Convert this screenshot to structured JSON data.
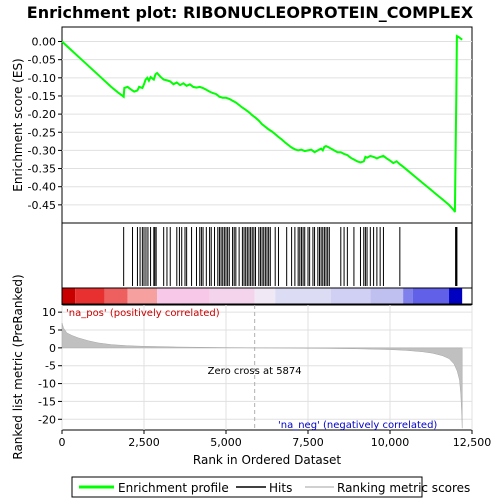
{
  "chart_data": {
    "type": "line",
    "title": "Enrichment plot: RIBONUCLEOPROTEIN_COMPLEX",
    "top_panel": {
      "ylabel": "Enrichment score (ES)",
      "ylim": [
        -0.5,
        0.04
      ],
      "yticks": [
        0.0,
        -0.05,
        -0.1,
        -0.15,
        -0.2,
        -0.25,
        -0.3,
        -0.35,
        -0.4,
        -0.45
      ],
      "ytick_labels": [
        "0.00",
        "-0.05",
        "-0.10",
        "-0.15",
        "-0.20",
        "-0.25",
        "-0.30",
        "-0.35",
        "-0.40",
        "-0.45"
      ],
      "grid": true,
      "series": [
        {
          "name": "Enrichment profile",
          "color": "#00ff00",
          "x": [
            0,
            300,
            600,
            900,
            1200,
            1500,
            1700,
            1880,
            1900,
            2000,
            2100,
            2200,
            2300,
            2350,
            2450,
            2500,
            2550,
            2600,
            2650,
            2700,
            2800,
            2850,
            2900,
            3000,
            3100,
            3200,
            3300,
            3400,
            3500,
            3600,
            3700,
            3800,
            3900,
            4000,
            4100,
            4200,
            4300,
            4400,
            4500,
            4600,
            4700,
            4800,
            4900,
            5000,
            5100,
            5200,
            5300,
            5400,
            5500,
            5600,
            5700,
            5800,
            5900,
            6000,
            6100,
            6200,
            6300,
            6400,
            6500,
            6600,
            6700,
            6800,
            6900,
            7000,
            7100,
            7200,
            7300,
            7400,
            7500,
            7600,
            7700,
            7800,
            7900,
            7950,
            8000,
            8050,
            8100,
            8200,
            8300,
            8400,
            8500,
            8600,
            8700,
            8800,
            8900,
            9000,
            9100,
            9200,
            9250,
            9300,
            9400,
            9500,
            9600,
            9700,
            9800,
            9900,
            10000,
            10100,
            10200,
            10300,
            10400,
            10600,
            10800,
            11000,
            11200,
            11400,
            11600,
            11800,
            11950,
            11980,
            12000,
            12020,
            12040,
            12100,
            12200
          ],
          "y": [
            0.0,
            -0.025,
            -0.05,
            -0.075,
            -0.1,
            -0.125,
            -0.14,
            -0.152,
            -0.128,
            -0.125,
            -0.132,
            -0.138,
            -0.135,
            -0.125,
            -0.128,
            -0.118,
            -0.105,
            -0.1,
            -0.108,
            -0.098,
            -0.105,
            -0.09,
            -0.087,
            -0.097,
            -0.105,
            -0.107,
            -0.11,
            -0.118,
            -0.113,
            -0.12,
            -0.115,
            -0.122,
            -0.118,
            -0.125,
            -0.127,
            -0.125,
            -0.128,
            -0.133,
            -0.138,
            -0.142,
            -0.145,
            -0.152,
            -0.155,
            -0.155,
            -0.158,
            -0.163,
            -0.168,
            -0.175,
            -0.182,
            -0.188,
            -0.195,
            -0.203,
            -0.21,
            -0.218,
            -0.228,
            -0.235,
            -0.242,
            -0.248,
            -0.255,
            -0.263,
            -0.27,
            -0.278,
            -0.285,
            -0.292,
            -0.297,
            -0.3,
            -0.298,
            -0.302,
            -0.3,
            -0.298,
            -0.305,
            -0.3,
            -0.295,
            -0.3,
            -0.29,
            -0.288,
            -0.29,
            -0.295,
            -0.3,
            -0.305,
            -0.305,
            -0.31,
            -0.313,
            -0.32,
            -0.325,
            -0.33,
            -0.333,
            -0.33,
            -0.318,
            -0.32,
            -0.315,
            -0.318,
            -0.322,
            -0.318,
            -0.315,
            -0.322,
            -0.328,
            -0.335,
            -0.33,
            -0.338,
            -0.345,
            -0.36,
            -0.375,
            -0.39,
            -0.405,
            -0.42,
            -0.435,
            -0.45,
            -0.465,
            -0.47,
            -0.31,
            -0.15,
            0.015,
            0.012,
            0.005
          ]
        }
      ]
    },
    "hits_panel": {
      "hits": [
        1880,
        2150,
        2300,
        2380,
        2450,
        2500,
        2560,
        2620,
        2700,
        2800,
        2830,
        2870,
        3100,
        3200,
        3300,
        3500,
        3580,
        3650,
        3750,
        3800,
        3950,
        4100,
        4200,
        4250,
        4300,
        4400,
        4500,
        4550,
        4650,
        4750,
        4800,
        4850,
        4900,
        4950,
        5000,
        5050,
        5100,
        5200,
        5250,
        5300,
        5400,
        5500,
        5550,
        5600,
        5650,
        5700,
        5750,
        5800,
        5850,
        5900,
        6000,
        6050,
        6100,
        6150,
        6200,
        6250,
        6300,
        6350,
        6500,
        6600,
        6850,
        7000,
        7100,
        7200,
        7250,
        7300,
        7350,
        7400,
        7500,
        7550,
        7650,
        7700,
        7800,
        7850,
        7900,
        7950,
        8000,
        8050,
        8100,
        8150,
        8500,
        8600,
        8700,
        8900,
        9100,
        9200,
        9250,
        9300,
        9400,
        9500,
        9600,
        9700,
        9800,
        10300,
        12000,
        12020,
        12040
      ]
    },
    "metric_panel": {
      "ylabel": "Ranked list metric (PreRanked)",
      "xlabel": "Rank in Ordered Dataset",
      "ylim": [
        -23,
        12
      ],
      "yticks": [
        10,
        5,
        0,
        -5,
        -10,
        -15,
        -20
      ],
      "ytick_labels": [
        "10",
        "5",
        "0",
        "-5",
        "-10",
        "-15",
        "-20"
      ],
      "xlim": [
        0,
        12500
      ],
      "xticks": [
        0,
        2500,
        5000,
        7500,
        10000,
        12500
      ],
      "xtick_labels": [
        "0",
        "2,500",
        "5,000",
        "7,500",
        "10,000",
        "12,500"
      ],
      "grid": true,
      "series": [
        {
          "name": "Ranking metric scores",
          "color": "#c0c0c0",
          "x": [
            0,
            50,
            150,
            300,
            500,
            800,
            1100,
            1500,
            2000,
            2500,
            3000,
            3500,
            4000,
            4500,
            5000,
            5500,
            5874,
            6500,
            7000,
            7500,
            8000,
            8500,
            9000,
            9500,
            10000,
            10500,
            11000,
            11300,
            11600,
            11800,
            11950,
            12050,
            12120,
            12160,
            12190,
            12200
          ],
          "y": [
            7.0,
            5.5,
            4.2,
            3.5,
            2.8,
            2.0,
            1.4,
            0.9,
            0.6,
            0.45,
            0.35,
            0.25,
            0.18,
            0.12,
            0.08,
            0.04,
            0.0,
            -0.05,
            -0.08,
            -0.12,
            -0.16,
            -0.2,
            -0.27,
            -0.37,
            -0.5,
            -0.7,
            -1.1,
            -1.5,
            -2.2,
            -3.0,
            -4.5,
            -6.5,
            -9.0,
            -13.0,
            -19.0,
            -22.5
          ]
        }
      ],
      "zero_cross": 5874,
      "zero_cross_label": "Zero cross at 5874",
      "pos_label": "'na_pos' (positively correlated)",
      "neg_label": "'na_neg' (negatively correlated)"
    },
    "legend": {
      "placement": "bottom",
      "entries": [
        {
          "label": "Enrichment profile",
          "color": "#00ff00"
        },
        {
          "label": "Hits",
          "color": "#000000"
        },
        {
          "label": "Ranking metric scores",
          "color": "#c0c0c0"
        }
      ]
    }
  }
}
